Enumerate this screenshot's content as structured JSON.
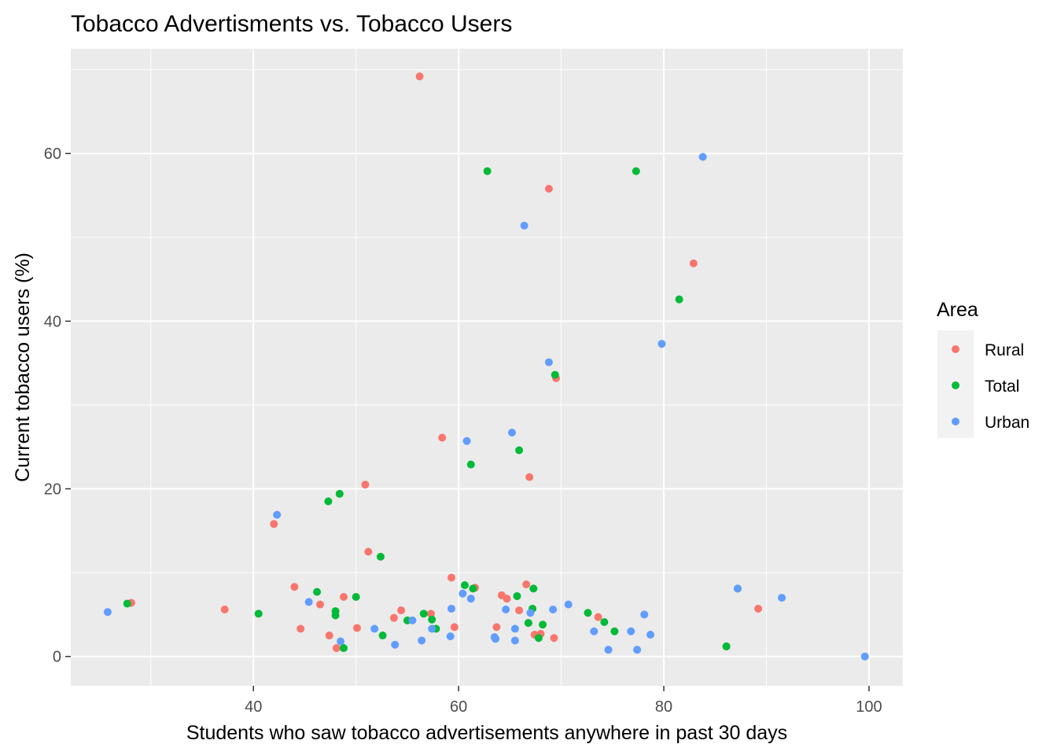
{
  "chart_data": {
    "type": "scatter",
    "title": "Tobacco Advertisments vs. Tobacco Users",
    "xlabel": "Students who saw tobacco advertisements anywhere in past 30 days",
    "ylabel": "Current tobacco users (%)",
    "xlim": [
      22.2,
      103.3
    ],
    "ylim": [
      -3.5,
      72.5
    ],
    "x_ticks": [
      40,
      60,
      80,
      100
    ],
    "y_ticks": [
      0,
      20,
      40,
      60
    ],
    "x_tick_labels": [
      "40",
      "60",
      "80",
      "100"
    ],
    "y_tick_labels": [
      "0",
      "20",
      "40",
      "60"
    ],
    "grid": true,
    "legend": {
      "title": "Area",
      "position": "right"
    },
    "series": [
      {
        "name": "Rural",
        "color": "#F8766D",
        "points": [
          [
            56.2,
            69.2
          ],
          [
            68.8,
            55.8
          ],
          [
            82.9,
            46.9
          ],
          [
            69.5,
            33.2
          ],
          [
            58.4,
            26.1
          ],
          [
            66.9,
            21.4
          ],
          [
            50.9,
            20.5
          ],
          [
            42.0,
            15.8
          ],
          [
            51.2,
            12.5
          ],
          [
            59.3,
            9.4
          ],
          [
            66.6,
            8.6
          ],
          [
            44.0,
            8.3
          ],
          [
            61.6,
            8.2
          ],
          [
            64.2,
            7.3
          ],
          [
            64.7,
            6.9
          ],
          [
            48.8,
            7.1
          ],
          [
            28.1,
            6.4
          ],
          [
            46.5,
            6.2
          ],
          [
            37.2,
            5.6
          ],
          [
            54.4,
            5.5
          ],
          [
            65.9,
            5.5
          ],
          [
            89.2,
            5.7
          ],
          [
            57.3,
            5.1
          ],
          [
            53.7,
            4.6
          ],
          [
            73.6,
            4.7
          ],
          [
            66.8,
            4.0
          ],
          [
            63.7,
            3.5
          ],
          [
            59.6,
            3.5
          ],
          [
            50.1,
            3.4
          ],
          [
            44.6,
            3.3
          ],
          [
            47.4,
            2.5
          ],
          [
            67.4,
            2.6
          ],
          [
            68.0,
            2.7
          ],
          [
            69.3,
            2.2
          ],
          [
            48.1,
            1.0
          ],
          [
            86.1,
            1.2
          ]
        ]
      },
      {
        "name": "Total",
        "color": "#00BA38",
        "points": [
          [
            62.8,
            57.9
          ],
          [
            77.3,
            57.9
          ],
          [
            81.5,
            42.6
          ],
          [
            69.4,
            33.6
          ],
          [
            65.9,
            24.6
          ],
          [
            61.2,
            22.9
          ],
          [
            48.4,
            19.4
          ],
          [
            47.3,
            18.5
          ],
          [
            52.4,
            11.9
          ],
          [
            60.6,
            8.5
          ],
          [
            61.4,
            8.1
          ],
          [
            67.3,
            8.1
          ],
          [
            87.2,
            8.1
          ],
          [
            46.2,
            7.7
          ],
          [
            50.0,
            7.1
          ],
          [
            65.7,
            7.2
          ],
          [
            27.7,
            6.3
          ],
          [
            67.2,
            5.7
          ],
          [
            40.5,
            5.1
          ],
          [
            48.0,
            5.4
          ],
          [
            48.0,
            4.9
          ],
          [
            56.6,
            5.1
          ],
          [
            72.6,
            5.2
          ],
          [
            57.4,
            4.4
          ],
          [
            55.0,
            4.3
          ],
          [
            68.2,
            3.8
          ],
          [
            74.2,
            4.1
          ],
          [
            66.8,
            4.0
          ],
          [
            57.8,
            3.3
          ],
          [
            75.2,
            3.0
          ],
          [
            52.6,
            2.5
          ],
          [
            67.8,
            2.2
          ],
          [
            48.8,
            1.0
          ],
          [
            86.1,
            1.2
          ]
        ]
      },
      {
        "name": "Urban",
        "color": "#619CFF",
        "points": [
          [
            83.8,
            59.6
          ],
          [
            66.4,
            51.4
          ],
          [
            79.8,
            37.3
          ],
          [
            68.8,
            35.1
          ],
          [
            65.2,
            26.7
          ],
          [
            60.8,
            25.7
          ],
          [
            42.3,
            16.9
          ],
          [
            87.2,
            8.1
          ],
          [
            60.4,
            7.5
          ],
          [
            61.2,
            6.9
          ],
          [
            70.7,
            6.2
          ],
          [
            91.5,
            7.0
          ],
          [
            45.4,
            6.5
          ],
          [
            25.8,
            5.3
          ],
          [
            59.3,
            5.7
          ],
          [
            64.6,
            5.6
          ],
          [
            69.2,
            5.6
          ],
          [
            67.0,
            5.2
          ],
          [
            78.1,
            5.0
          ],
          [
            55.5,
            4.3
          ],
          [
            57.4,
            3.3
          ],
          [
            51.8,
            3.3
          ],
          [
            65.5,
            3.3
          ],
          [
            76.8,
            3.0
          ],
          [
            73.2,
            3.0
          ],
          [
            78.7,
            2.6
          ],
          [
            59.2,
            2.4
          ],
          [
            63.5,
            2.3
          ],
          [
            63.6,
            2.1
          ],
          [
            65.5,
            1.9
          ],
          [
            56.4,
            1.9
          ],
          [
            48.5,
            1.8
          ],
          [
            53.8,
            1.4
          ],
          [
            74.6,
            0.8
          ],
          [
            77.4,
            0.8
          ],
          [
            99.6,
            0.0
          ]
        ]
      }
    ]
  }
}
